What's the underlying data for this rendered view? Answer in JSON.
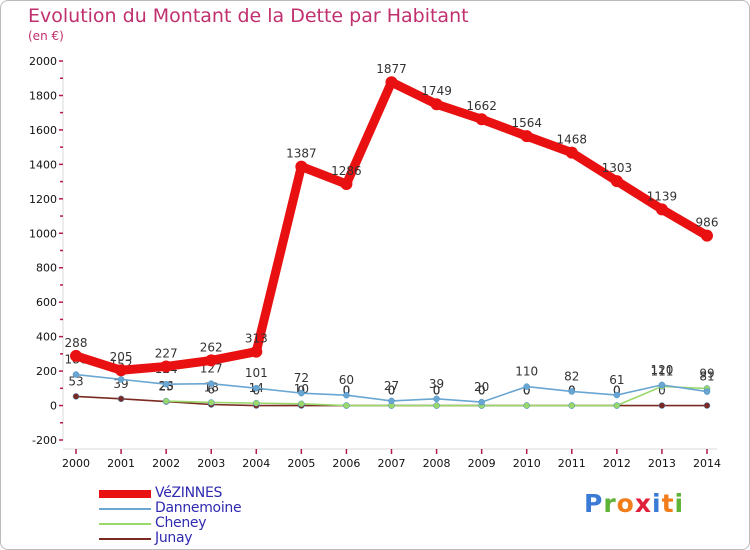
{
  "title": "Evolution du Montant de la Dette par Habitant",
  "subtitle": "(en €)",
  "brand": {
    "text": "Proxiti",
    "colors": [
      "#3a7bd5",
      "#5fb336",
      "#f07d1a",
      "#e0203a",
      "#3a7bd5",
      "#f07d1a",
      "#5fb336"
    ]
  },
  "chart_data": {
    "type": "line",
    "title": "Evolution du Montant de la Dette par Habitant",
    "ylabel": "(en €)",
    "ylim": [
      -200,
      2000
    ],
    "yticks": [
      -200,
      0,
      200,
      400,
      600,
      800,
      1000,
      1200,
      1400,
      1600,
      1800,
      2000
    ],
    "x": [
      "2000",
      "2001",
      "2002",
      "2003",
      "2004",
      "2005",
      "2006",
      "2007",
      "2008",
      "2009",
      "2010",
      "2011",
      "2012",
      "2013",
      "2014"
    ],
    "series": [
      {
        "name": "VéZINNES",
        "color": "#e81010",
        "values": [
          288,
          205,
          227,
          262,
          313,
          1387,
          1286,
          1877,
          1749,
          1662,
          1564,
          1468,
          1303,
          1139,
          986
        ]
      },
      {
        "name": "Dannemoine",
        "color": "#6aa6d2",
        "values": [
          180,
          152,
          124,
          127,
          101,
          72,
          60,
          27,
          39,
          20,
          110,
          82,
          61,
          120,
          81
        ]
      },
      {
        "name": "Cheney",
        "color": "#9ad86a",
        "values": [
          null,
          null,
          26,
          18,
          14,
          10,
          0,
          0,
          0,
          0,
          0,
          0,
          0,
          111,
          99
        ]
      },
      {
        "name": "Junay",
        "color": "#7a2a22",
        "values": [
          53,
          39,
          23,
          6,
          0,
          0,
          0,
          0,
          0,
          0,
          0,
          0,
          0,
          0,
          0
        ]
      }
    ]
  }
}
